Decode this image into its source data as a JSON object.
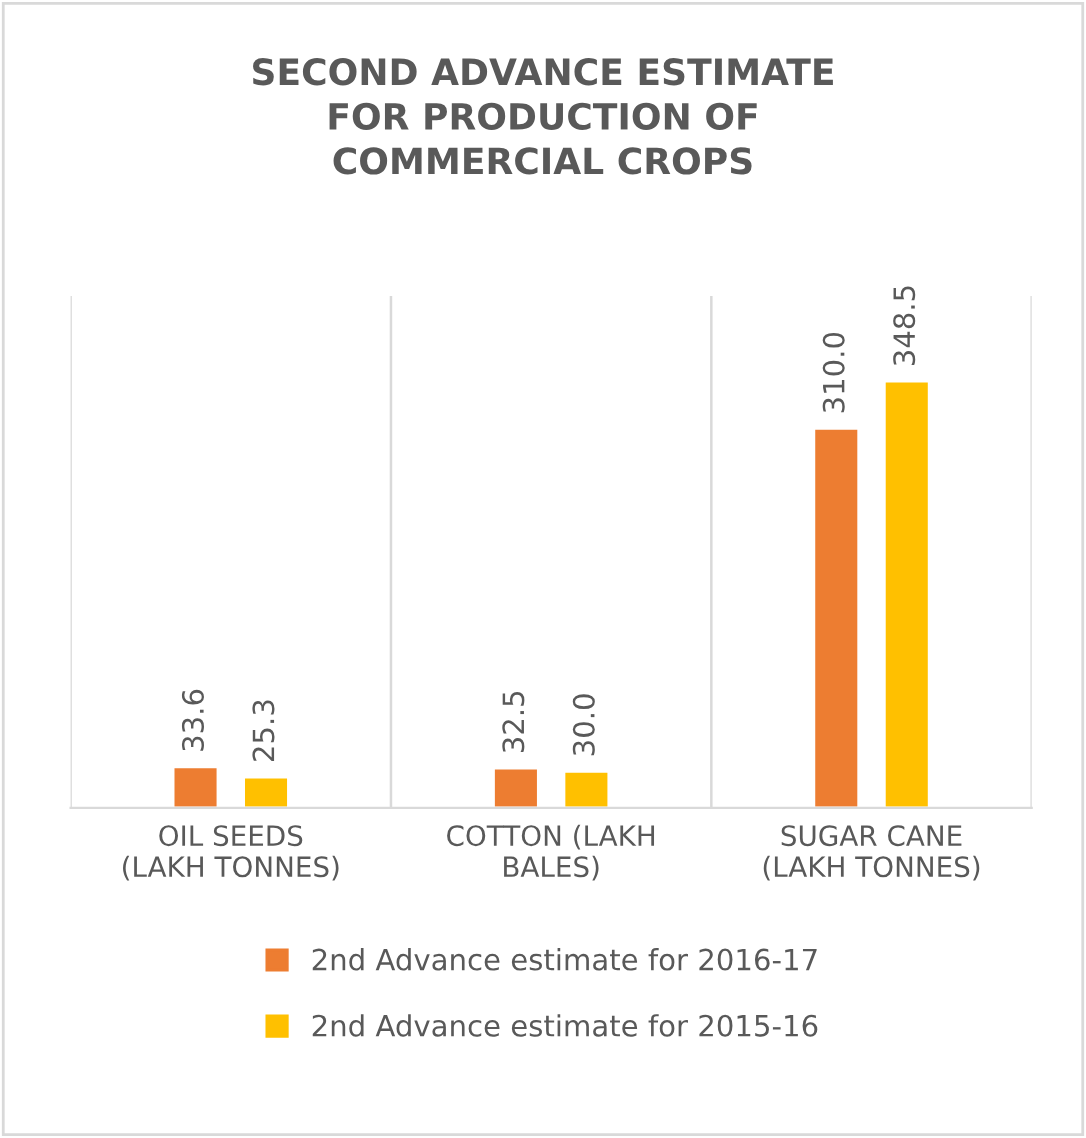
{
  "chart_data": {
    "type": "bar",
    "title": "SECOND ADVANCE ESTIMATE FOR PRODUCTION OF COMMERCIAL CROPS",
    "categories": [
      "OIL SEEDS (LAKH TONNES)",
      "COTTON (LAKH BALES)",
      "SUGAR CANE (LAKH TONNES)"
    ],
    "series": [
      {
        "name": "2nd Advance estimate for 2016-17",
        "color": "#ed7d31",
        "values": [
          33.6,
          32.5,
          310.0
        ],
        "value_labels": [
          "33.6",
          "32.5",
          "310.0"
        ]
      },
      {
        "name": "2nd Advance estimate for 2015-16",
        "color": "#ffc000",
        "values": [
          25.3,
          30.0,
          348.5
        ],
        "value_labels": [
          "25.3",
          "30.0",
          "348.5"
        ]
      }
    ],
    "legend": "bottom"
  }
}
